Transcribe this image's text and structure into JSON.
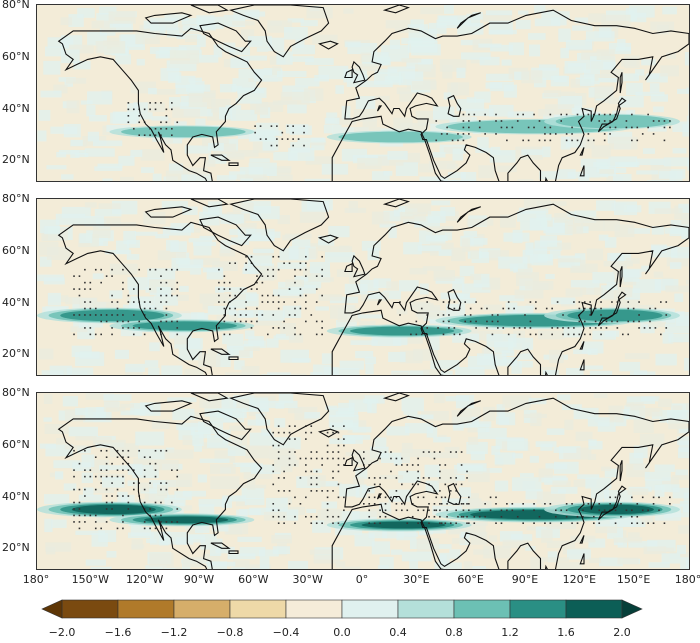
{
  "lat_labels": [
    "80°N",
    "60°N",
    "40°N",
    "20°N"
  ],
  "lon_labels": [
    "180°",
    "150°W",
    "120°W",
    "90°W",
    "60°W",
    "30°W",
    "0°",
    "30°E",
    "60°E",
    "90°E",
    "120°E",
    "150°E",
    "180°"
  ],
  "colorbar": {
    "ticks": [
      "−2.0",
      "−1.6",
      "−1.2",
      "−0.8",
      "−0.4",
      "0.0",
      "0.4",
      "0.8",
      "1.2",
      "1.6",
      "2.0"
    ],
    "colors": [
      "#7a4a10",
      "#b07a2a",
      "#d6ae6a",
      "#eed9a8",
      "#f5ecd9",
      "#e0f1ef",
      "#b4e0da",
      "#6cc0b4",
      "#2a8f84",
      "#0c5e56"
    ]
  },
  "panels": [
    {
      "name": "top",
      "jet_intensity": 0.45
    },
    {
      "name": "middle",
      "jet_intensity": 0.7
    },
    {
      "name": "bottom",
      "jet_intensity": 1.0
    }
  ]
}
